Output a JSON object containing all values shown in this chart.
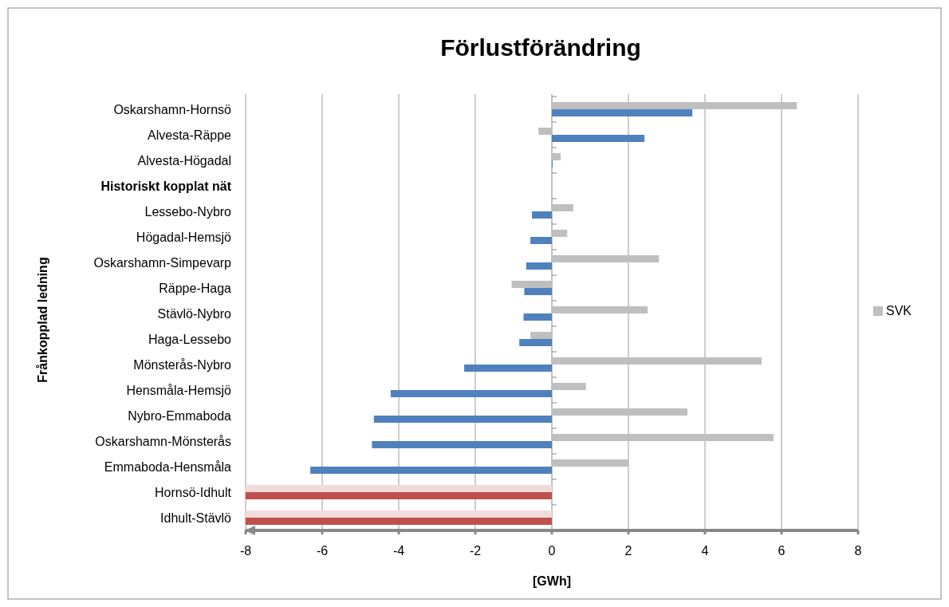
{
  "chart_data": {
    "type": "bar",
    "orientation": "horizontal",
    "title": "Förlustförändring",
    "xlabel": "[GWh]",
    "ylabel": "Frånkopplad ledning",
    "categories": [
      "Oskarshamn-Hornsö",
      "Alvesta-Räppe",
      "Alvesta-Högadal",
      "Historiskt kopplat nät",
      "Lessebo-Nybro",
      "Högadal-Hemsjö",
      "Oskarshamn-Simpevarp",
      "Räppe-Haga",
      "Stävlö-Nybro",
      "Haga-Lessebo",
      "Mönsterås-Nybro",
      "Hensmåla-Hemsjö",
      "Nybro-Emmaboda",
      "Oskarshamn-Mönsterås",
      "Emmaboda-Hensmåla",
      "Hornsö-Idhult",
      "Idhult-Stävlö"
    ],
    "series": [
      {
        "name": "SVK",
        "color": "#bfbfbf",
        "colors": [
          "#bfbfbf",
          "#bfbfbf",
          "#bfbfbf",
          null,
          "#bfbfbf",
          "#bfbfbf",
          "#bfbfbf",
          "#bfbfbf",
          "#bfbfbf",
          "#bfbfbf",
          "#bfbfbf",
          "#bfbfbf",
          "#bfbfbf",
          "#bfbfbf",
          "#bfbfbf",
          "#f2dcdb",
          "#f2dcdb"
        ],
        "values": [
          6.4,
          -0.35,
          0.23,
          null,
          0.56,
          0.4,
          2.8,
          -1.05,
          2.5,
          -0.56,
          5.48,
          0.89,
          3.54,
          5.79,
          2.0,
          -8,
          -8
        ]
      },
      {
        "colors": [
          "#4f81bd",
          "#4f81bd",
          "#4f81bd",
          null,
          "#4f81bd",
          "#4f81bd",
          "#4f81bd",
          "#4f81bd",
          "#4f81bd",
          "#4f81bd",
          "#4f81bd",
          "#4f81bd",
          "#4f81bd",
          "#4f81bd",
          "#4f81bd",
          "#c0504d",
          "#c0504d"
        ],
        "values": [
          3.67,
          2.42,
          0.02,
          null,
          -0.52,
          -0.56,
          -0.67,
          -0.72,
          -0.74,
          -0.85,
          -2.29,
          -4.21,
          -4.65,
          -4.7,
          -6.31,
          -8,
          -8
        ]
      }
    ],
    "xlim": [
      -8,
      8
    ],
    "xticks": [
      -8,
      -6,
      -4,
      -2,
      0,
      2,
      4,
      6,
      8
    ],
    "grid": "x",
    "legend": "right"
  }
}
